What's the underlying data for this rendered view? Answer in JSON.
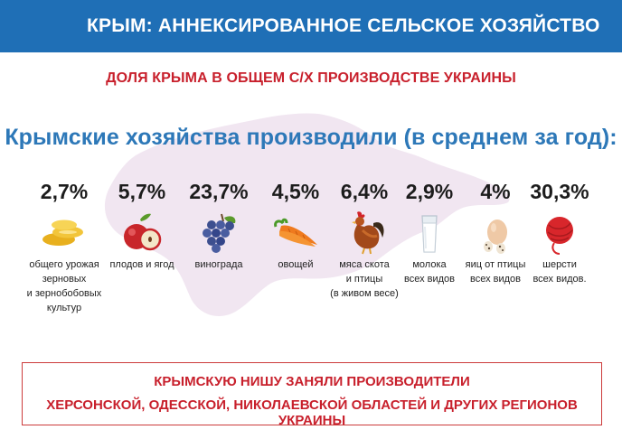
{
  "header": {
    "title": "КРЫМ:  АННЕКСИРОВАННОЕ СЕЛЬСКОЕ ХОЗЯЙСТВО"
  },
  "subtitle": "ДОЛЯ КРЫМА В ОБЩЕМ С/Х ПРОИЗВОДСТВЕ УКРАИНЫ",
  "headline": "Крымские хозяйства производили (в среднем за год):",
  "chart_data": {
    "type": "table",
    "title": "ДОЛЯ КРЫМА В ОБЩЕМ С/Х ПРОИЗВОДСТВЕ УКРАИНЫ",
    "unit": "%",
    "items": [
      {
        "value": 2.7,
        "value_label": "2,7%",
        "label_lines": [
          "общего урожая",
          "зерновых",
          "и зернобобовых",
          "культур"
        ],
        "icon": "grain-icon"
      },
      {
        "value": 5.7,
        "value_label": "5,7%",
        "label_lines": [
          "плодов и ягод"
        ],
        "icon": "apple-icon"
      },
      {
        "value": 23.7,
        "value_label": "23,7%",
        "label_lines": [
          "винограда"
        ],
        "icon": "grapes-icon"
      },
      {
        "value": 4.5,
        "value_label": "4,5%",
        "label_lines": [
          "овощей"
        ],
        "icon": "carrot-icon"
      },
      {
        "value": 6.4,
        "value_label": "6,4%",
        "label_lines": [
          "мяса скота",
          "и птицы",
          "(в живом весе)"
        ],
        "icon": "rooster-icon"
      },
      {
        "value": 2.9,
        "value_label": "2,9%",
        "label_lines": [
          "молока",
          "всех видов"
        ],
        "icon": "milk-icon"
      },
      {
        "value": 4,
        "value_label": "4%",
        "label_lines": [
          "яиц от птицы",
          "всех видов"
        ],
        "icon": "eggs-icon"
      },
      {
        "value": 30.3,
        "value_label": "30,3%",
        "label_lines": [
          "шерсти",
          "всех видов."
        ],
        "icon": "yarn-icon"
      }
    ]
  },
  "footer": {
    "line1": "КРЫМСКУЮ НИШУ ЗАНЯЛИ ПРОИЗВОДИТЕЛИ",
    "line2": "ХЕРСОНСКОЙ, ОДЕССКОЙ, НИКОЛАЕВСКОЙ ОБЛАСТЕЙ И ДРУГИХ РЕГИОНОВ УКРАИНЫ"
  },
  "colors": {
    "header_bg": "#1f6fb6",
    "accent_red": "#c8202c",
    "headline_blue": "#2d78b8",
    "map_fill": "#f1e6f1"
  }
}
